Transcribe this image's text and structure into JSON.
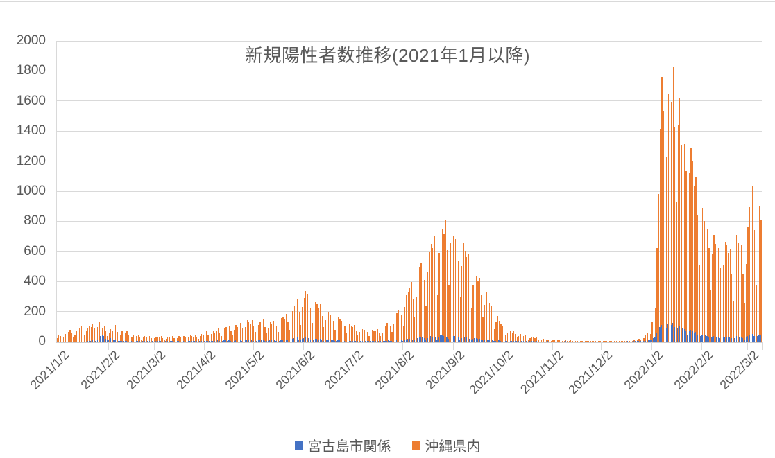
{
  "title": "新規陽性者数推移(2021年1月以降)",
  "legend": {
    "items": [
      {
        "label": "宮古島市関係",
        "color": "#4472C4"
      },
      {
        "label": "沖縄県内",
        "color": "#ED7D31"
      }
    ]
  },
  "y_axis": {
    "min": 0,
    "max": 2000,
    "step": 200,
    "labels": [
      "0",
      "200",
      "400",
      "600",
      "800",
      "1000",
      "1200",
      "1400",
      "1600",
      "1800",
      "2000"
    ]
  },
  "x_axis": {
    "start_date": "2021/1/1",
    "end_date": "2022/3/10",
    "ticks": [
      {
        "label": "2021/1/2",
        "day": 1
      },
      {
        "label": "2021/2/2",
        "day": 32
      },
      {
        "label": "2021/3/2",
        "day": 60
      },
      {
        "label": "2021/4/2",
        "day": 91
      },
      {
        "label": "2021/5/2",
        "day": 121
      },
      {
        "label": "2021/6/2",
        "day": 152
      },
      {
        "label": "2021/7/2",
        "day": 182
      },
      {
        "label": "2021/8/2",
        "day": 213
      },
      {
        "label": "2021/9/2",
        "day": 244
      },
      {
        "label": "2021/10/2",
        "day": 274
      },
      {
        "label": "2021/11/2",
        "day": 305
      },
      {
        "label": "2021/12/2",
        "day": 335
      },
      {
        "label": "2022/1/2",
        "day": 366
      },
      {
        "label": "2022/2/2",
        "day": 397
      },
      {
        "label": "2022/3/2",
        "day": 425
      }
    ]
  },
  "chart_data": {
    "type": "bar",
    "title": "新規陽性者数推移(2021年1月以降)",
    "x_unit": "day",
    "x_start": "2021/1/1",
    "x_end": "2022/3/10",
    "ylim": [
      0,
      2000
    ],
    "grid": "horizontal",
    "legend_position": "bottom",
    "series": [
      {
        "name": "宮古島市関係",
        "color": "#4472C4",
        "values": [
          0,
          0,
          0,
          0,
          0,
          0,
          0,
          0,
          0,
          0,
          0,
          0,
          0,
          0,
          0,
          0,
          0,
          0,
          0,
          1,
          2,
          4,
          8,
          5,
          3,
          14,
          27,
          38,
          42,
          36,
          19,
          12,
          16,
          21,
          11,
          8,
          10,
          6,
          2,
          4,
          6,
          3,
          4,
          5,
          2,
          1,
          2,
          3,
          2,
          1,
          2,
          1,
          0,
          1,
          2,
          1,
          1,
          2,
          1,
          1,
          0,
          1,
          2,
          1,
          1,
          0,
          0,
          1,
          1,
          2,
          1,
          1,
          0,
          0,
          1,
          2,
          1,
          1,
          2,
          0,
          0,
          1,
          2,
          1,
          1,
          2,
          1,
          0,
          1,
          3,
          2,
          3,
          4,
          2,
          1,
          3,
          5,
          4,
          6,
          7,
          3,
          2,
          5,
          8,
          9,
          6,
          8,
          4,
          2,
          6,
          10,
          8,
          9,
          12,
          6,
          3,
          8,
          14,
          11,
          9,
          8,
          5,
          3,
          5,
          7,
          9,
          7,
          10,
          5,
          2,
          5,
          9,
          8,
          9,
          12,
          6,
          3,
          6,
          11,
          13,
          10,
          14,
          8,
          4,
          9,
          17,
          21,
          22,
          26,
          15,
          7,
          18,
          24,
          30,
          26,
          22,
          16,
          8,
          12,
          20,
          18,
          15,
          17,
          11,
          5,
          9,
          14,
          12,
          10,
          12,
          7,
          4,
          6,
          9,
          8,
          7,
          8,
          5,
          3,
          4,
          6,
          5,
          4,
          6,
          3,
          2,
          3,
          4,
          4,
          3,
          4,
          3,
          1,
          2,
          3,
          3,
          2,
          3,
          2,
          1,
          2,
          4,
          5,
          6,
          7,
          4,
          2,
          5,
          8,
          10,
          11,
          12,
          9,
          5,
          12,
          16,
          18,
          19,
          22,
          14,
          8,
          16,
          25,
          28,
          29,
          31,
          21,
          12,
          24,
          33,
          36,
          34,
          39,
          27,
          15,
          31,
          42,
          40,
          38,
          45,
          32,
          19,
          35,
          40,
          36,
          35,
          38,
          27,
          14,
          25,
          34,
          30,
          28,
          29,
          20,
          10,
          18,
          24,
          21,
          19,
          20,
          14,
          7,
          11,
          15,
          13,
          11,
          12,
          8,
          4,
          6,
          9,
          7,
          5,
          4,
          3,
          1,
          2,
          3,
          3,
          2,
          3,
          2,
          1,
          1,
          2,
          1,
          1,
          1,
          1,
          0,
          1,
          1,
          1,
          0,
          1,
          0,
          0,
          0,
          1,
          0,
          0,
          1,
          0,
          0,
          0,
          1,
          0,
          0,
          0,
          0,
          0,
          0,
          1,
          0,
          0,
          0,
          0,
          0,
          0,
          0,
          0,
          0,
          0,
          0,
          0,
          0,
          0,
          1,
          0,
          0,
          0,
          0,
          0,
          0,
          0,
          0,
          0,
          0,
          0,
          0,
          0,
          0,
          0,
          0,
          0,
          0,
          0,
          0,
          0,
          0,
          1,
          0,
          0,
          0,
          1,
          1,
          2,
          3,
          2,
          1,
          3,
          5,
          8,
          10,
          8,
          15,
          21,
          30,
          55,
          78,
          95,
          110,
          98,
          52,
          88,
          118,
          130,
          112,
          125,
          96,
          60,
          92,
          105,
          84,
          86,
          82,
          70,
          40,
          68,
          80,
          72,
          60,
          64,
          48,
          28,
          35,
          48,
          42,
          40,
          38,
          32,
          18,
          30,
          36,
          33,
          32,
          31,
          25,
          15,
          26,
          34,
          32,
          30,
          31,
          22,
          14,
          25,
          36,
          33,
          31,
          33,
          23,
          13,
          26,
          38,
          45,
          46,
          52,
          37,
          19,
          37,
          46,
          41
        ]
      },
      {
        "name": "沖縄県内",
        "color": "#ED7D31",
        "values": [
          24,
          41,
          37,
          18,
          29,
          50,
          58,
          65,
          77,
          60,
          30,
          48,
          71,
          83,
          91,
          102,
          75,
          41,
          68,
          92,
          108,
          95,
          117,
          86,
          52,
          98,
          129,
          112,
          90,
          105,
          67,
          38,
          62,
          81,
          70,
          90,
          112,
          65,
          28,
          40,
          70,
          64,
          55,
          68,
          46,
          21,
          34,
          48,
          42,
          38,
          46,
          30,
          15,
          28,
          39,
          34,
          29,
          35,
          22,
          12,
          21,
          33,
          26,
          29,
          38,
          25,
          10,
          19,
          28,
          32,
          26,
          35,
          22,
          13,
          24,
          36,
          31,
          28,
          39,
          26,
          16,
          29,
          41,
          38,
          34,
          46,
          31,
          20,
          37,
          52,
          48,
          56,
          67,
          43,
          27,
          49,
          70,
          62,
          75,
          86,
          58,
          35,
          64,
          88,
          95,
          84,
          101,
          70,
          42,
          79,
          110,
          98,
          108,
          125,
          86,
          50,
          95,
          145,
          128,
          118,
          142,
          104,
          66,
          85,
          112,
          128,
          116,
          152,
          98,
          55,
          87,
          130,
          122,
          138,
          160,
          105,
          64,
          102,
          155,
          168,
          150,
          186,
          132,
          80,
          133,
          203,
          238,
          245,
          280,
          195,
          110,
          230,
          292,
          335,
          312,
          285,
          221,
          125,
          180,
          262,
          248,
          226,
          250,
          170,
          96,
          144,
          210,
          196,
          178,
          200,
          138,
          78,
          112,
          160,
          151,
          140,
          156,
          104,
          60,
          86,
          120,
          104,
          96,
          112,
          76,
          44,
          66,
          90,
          84,
          78,
          92,
          64,
          38,
          57,
          80,
          74,
          70,
          83,
          58,
          36,
          62,
          96,
          108,
          125,
          140,
          102,
          65,
          115,
          162,
          190,
          208,
          230,
          175,
          104,
          232,
          310,
          334,
          356,
          398,
          280,
          160,
          300,
          455,
          500,
          522,
          563,
          410,
          240,
          460,
          600,
          648,
          622,
          700,
          520,
          310,
          590,
          762,
          745,
          718,
          809,
          610,
          380,
          660,
          755,
          700,
          680,
          720,
          540,
          300,
          502,
          660,
          602,
          562,
          580,
          420,
          225,
          380,
          490,
          440,
          402,
          425,
          310,
          160,
          245,
          330,
          298,
          260,
          240,
          165,
          85,
          130,
          170,
          140,
          120,
          100,
          76,
          40,
          62,
          88,
          70,
          60,
          72,
          50,
          26,
          38,
          50,
          42,
          36,
          40,
          28,
          12,
          21,
          30,
          26,
          22,
          26,
          16,
          8,
          14,
          20,
          17,
          14,
          16,
          10,
          5,
          8,
          12,
          9,
          7,
          10,
          6,
          2,
          5,
          8,
          6,
          5,
          7,
          4,
          1,
          3,
          6,
          4,
          3,
          5,
          3,
          1,
          4,
          6,
          4,
          3,
          5,
          2,
          1,
          3,
          4,
          6,
          4,
          5,
          3,
          1,
          2,
          4,
          3,
          3,
          4,
          2,
          1,
          2,
          3,
          4,
          5,
          6,
          4,
          2,
          5,
          9,
          12,
          15,
          20,
          14,
          10,
          22,
          40,
          55,
          78,
          52,
          130,
          164,
          225,
          623,
          981,
          1414,
          1759,
          1533,
          779,
          1224,
          1644,
          1817,
          1596,
          1829,
          1427,
          928,
          1443,
          1623,
          1309,
          1313,
          1312,
          1134,
          663,
          1118,
          1290,
          1198,
          1030,
          1094,
          844,
          513,
          627,
          889,
          800,
          780,
          747,
          624,
          344,
          582,
          711,
          650,
          642,
          620,
          489,
          287,
          509,
          662,
          640,
          590,
          611,
          446,
          270,
          489,
          708,
          657,
          620,
          646,
          450,
          255,
          515,
          764,
          894,
          902,
          1030,
          740,
          378,
          731,
          905,
          810
        ]
      }
    ]
  }
}
